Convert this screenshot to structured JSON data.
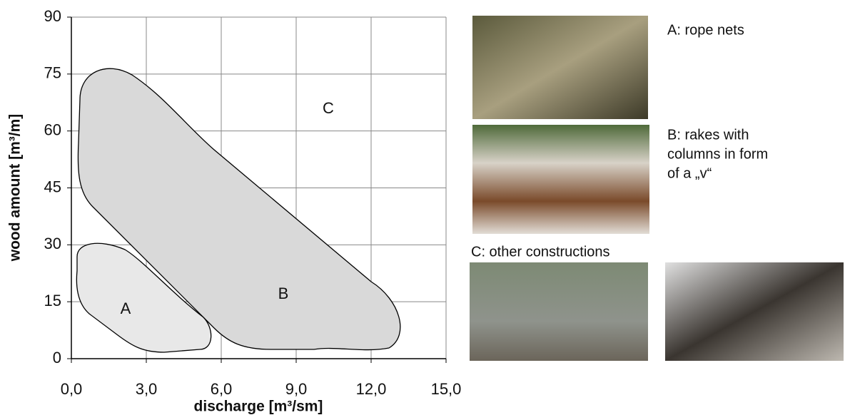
{
  "chart_data": {
    "type": "region",
    "xlabel": "discharge [m³/sm]",
    "ylabel": "wood amount [m³/m]",
    "xlim": [
      0,
      15
    ],
    "ylim": [
      0,
      90
    ],
    "xticks": [
      {
        "value": 0,
        "label": "0,0"
      },
      {
        "value": 3,
        "label": "3,0"
      },
      {
        "value": 6,
        "label": "6,0"
      },
      {
        "value": 9,
        "label": "9,0"
      },
      {
        "value": 12,
        "label": "12,0"
      },
      {
        "value": 15,
        "label": "15,0"
      }
    ],
    "yticks": [
      0,
      15,
      30,
      45,
      60,
      75,
      90
    ],
    "grid": true,
    "regions": [
      "A",
      "B",
      "C"
    ]
  },
  "photos": {
    "a": "A: rope nets",
    "b": [
      "B: rakes with",
      "columns in form",
      "of a „v“"
    ],
    "c": "C: other constructions"
  }
}
